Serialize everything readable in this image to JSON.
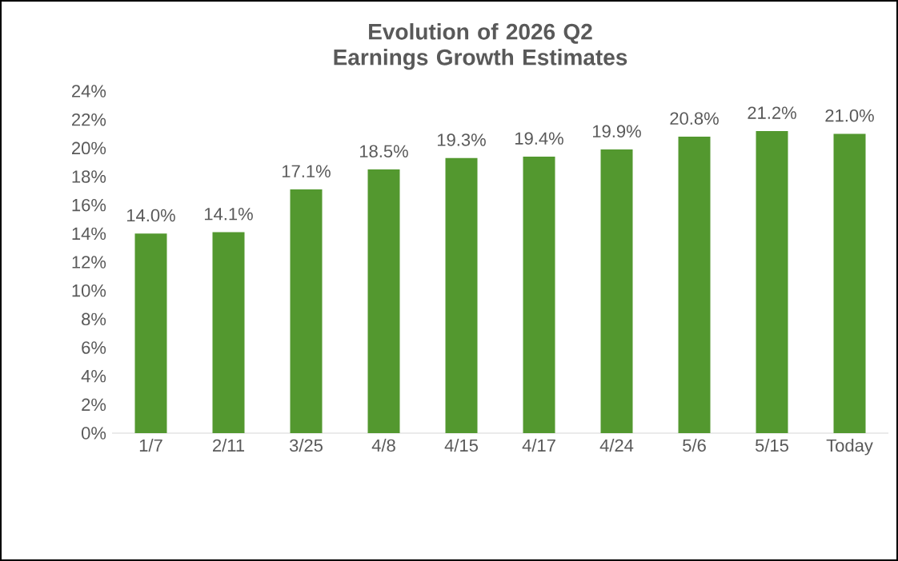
{
  "chart_data": {
    "type": "bar",
    "title": "Evolution of 2026 Q2 Earnings Growth Estimates",
    "categories": [
      "1/7",
      "2/11",
      "3/25",
      "4/8",
      "4/15",
      "4/17",
      "4/24",
      "5/6",
      "5/15",
      "Today"
    ],
    "values": [
      14.0,
      14.1,
      17.1,
      18.5,
      19.3,
      19.4,
      19.9,
      20.8,
      21.2,
      21.0
    ],
    "value_labels": [
      "14.0%",
      "14.1%",
      "17.1%",
      "18.5%",
      "19.3%",
      "19.4%",
      "19.9%",
      "20.8%",
      "21.2%",
      "21.0%"
    ],
    "color": "#53982f",
    "ylim": [
      0,
      24
    ],
    "yticks": [
      {
        "value": 0,
        "label": "0%"
      },
      {
        "value": 2,
        "label": "2%"
      },
      {
        "value": 4,
        "label": "4%"
      },
      {
        "value": 6,
        "label": "6%"
      },
      {
        "value": 8,
        "label": "8%"
      },
      {
        "value": 10,
        "label": "10%"
      },
      {
        "value": 12,
        "label": "12%"
      },
      {
        "value": 14,
        "label": "14%"
      },
      {
        "value": 16,
        "label": "16%"
      },
      {
        "value": 18,
        "label": "18%"
      },
      {
        "value": 20,
        "label": "20%"
      },
      {
        "value": 22,
        "label": "22%"
      },
      {
        "value": 24,
        "label": "24%"
      }
    ],
    "grid": false
  }
}
